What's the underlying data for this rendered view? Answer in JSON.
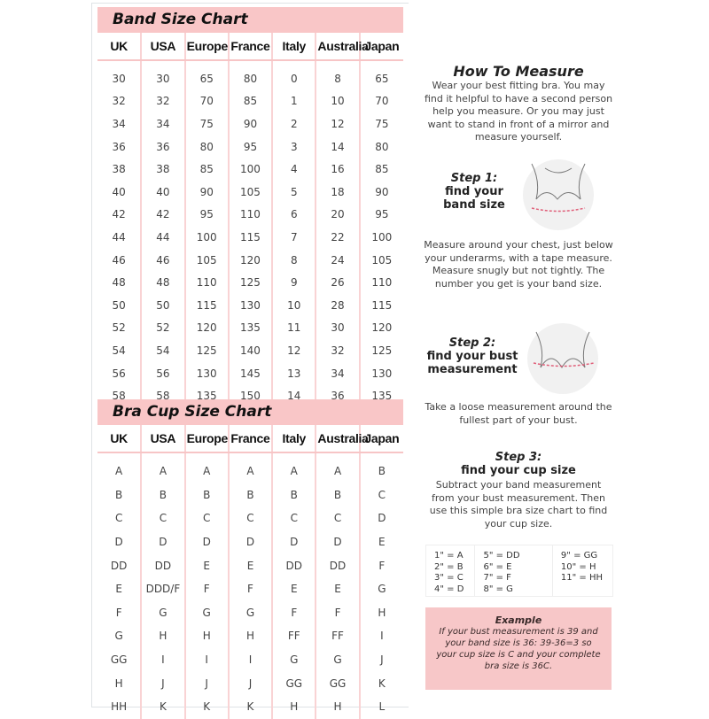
{
  "band_chart": {
    "title": "Band Size Chart",
    "headers": [
      "UK",
      "USA",
      "Europe",
      "France",
      "Italy",
      "Australia",
      "Japan"
    ],
    "rows": [
      [
        "30",
        "30",
        "65",
        "80",
        "0",
        "8",
        "65"
      ],
      [
        "32",
        "32",
        "70",
        "85",
        "1",
        "10",
        "70"
      ],
      [
        "34",
        "34",
        "75",
        "90",
        "2",
        "12",
        "75"
      ],
      [
        "36",
        "36",
        "80",
        "95",
        "3",
        "14",
        "80"
      ],
      [
        "38",
        "38",
        "85",
        "100",
        "4",
        "16",
        "85"
      ],
      [
        "40",
        "40",
        "90",
        "105",
        "5",
        "18",
        "90"
      ],
      [
        "42",
        "42",
        "95",
        "110",
        "6",
        "20",
        "95"
      ],
      [
        "44",
        "44",
        "100",
        "115",
        "7",
        "22",
        "100"
      ],
      [
        "46",
        "46",
        "105",
        "120",
        "8",
        "24",
        "105"
      ],
      [
        "48",
        "48",
        "110",
        "125",
        "9",
        "26",
        "110"
      ],
      [
        "50",
        "50",
        "115",
        "130",
        "10",
        "28",
        "115"
      ],
      [
        "52",
        "52",
        "120",
        "135",
        "11",
        "30",
        "120"
      ],
      [
        "54",
        "54",
        "125",
        "140",
        "12",
        "32",
        "125"
      ],
      [
        "56",
        "56",
        "130",
        "145",
        "13",
        "34",
        "130"
      ],
      [
        "58",
        "58",
        "135",
        "150",
        "14",
        "36",
        "135"
      ]
    ]
  },
  "cup_chart": {
    "title": "Bra Cup Size Chart",
    "headers": [
      "UK",
      "USA",
      "Europe",
      "France",
      "Italy",
      "Australia",
      "Japan"
    ],
    "rows": [
      [
        "A",
        "A",
        "A",
        "A",
        "A",
        "A",
        "B"
      ],
      [
        "B",
        "B",
        "B",
        "B",
        "B",
        "B",
        "C"
      ],
      [
        "C",
        "C",
        "C",
        "C",
        "C",
        "C",
        "D"
      ],
      [
        "D",
        "D",
        "D",
        "D",
        "D",
        "D",
        "E"
      ],
      [
        "DD",
        "DD",
        "E",
        "E",
        "DD",
        "DD",
        "F"
      ],
      [
        "E",
        "DDD/F",
        "F",
        "F",
        "E",
        "E",
        "G"
      ],
      [
        "F",
        "G",
        "G",
        "G",
        "F",
        "F",
        "H"
      ],
      [
        "G",
        "H",
        "H",
        "H",
        "FF",
        "FF",
        "I"
      ],
      [
        "GG",
        "I",
        "I",
        "I",
        "G",
        "G",
        "J"
      ],
      [
        "H",
        "J",
        "J",
        "J",
        "GG",
        "GG",
        "K"
      ],
      [
        "HH",
        "K",
        "K",
        "K",
        "H",
        "H",
        "L"
      ]
    ]
  },
  "how_to": {
    "title": "How To Measure",
    "intro": "Wear your best fitting bra. You may find it helpful to have a second person help you measure. Or you may just want to stand in front of a mirror and measure yourself.",
    "step1": {
      "label": "Step 1:",
      "title": "find your band size",
      "text": "Measure around your chest, just below your underarms, with a tape measure. Measure snugly but not tightly. The number you get is your band size."
    },
    "step2": {
      "label": "Step 2:",
      "title": "find your bust measurement",
      "text": "Take a loose measurement around the fullest part of your bust."
    },
    "step3": {
      "label": "Step 3:",
      "title": "find your cup size",
      "text": "Subtract your band measurement from your bust measurement. Then use this simple bra size chart to find your cup size."
    }
  },
  "cup_key": [
    [
      "1\" = A",
      "2\" = B",
      "3\" = C",
      "4\" = D"
    ],
    [
      "5\" = DD",
      "6\" = E",
      "7\" = F",
      "8\" = G"
    ],
    [
      "9\" = GG",
      "10\" = H",
      "11\" = HH"
    ]
  ],
  "example": {
    "title": "Example",
    "text": "If your bust measurement is 39 and your band size is 36: 39-36=3 so your cup size is C and your complete bra size is 36C."
  },
  "colors": {
    "accent_pink": "#f9c6c7"
  }
}
